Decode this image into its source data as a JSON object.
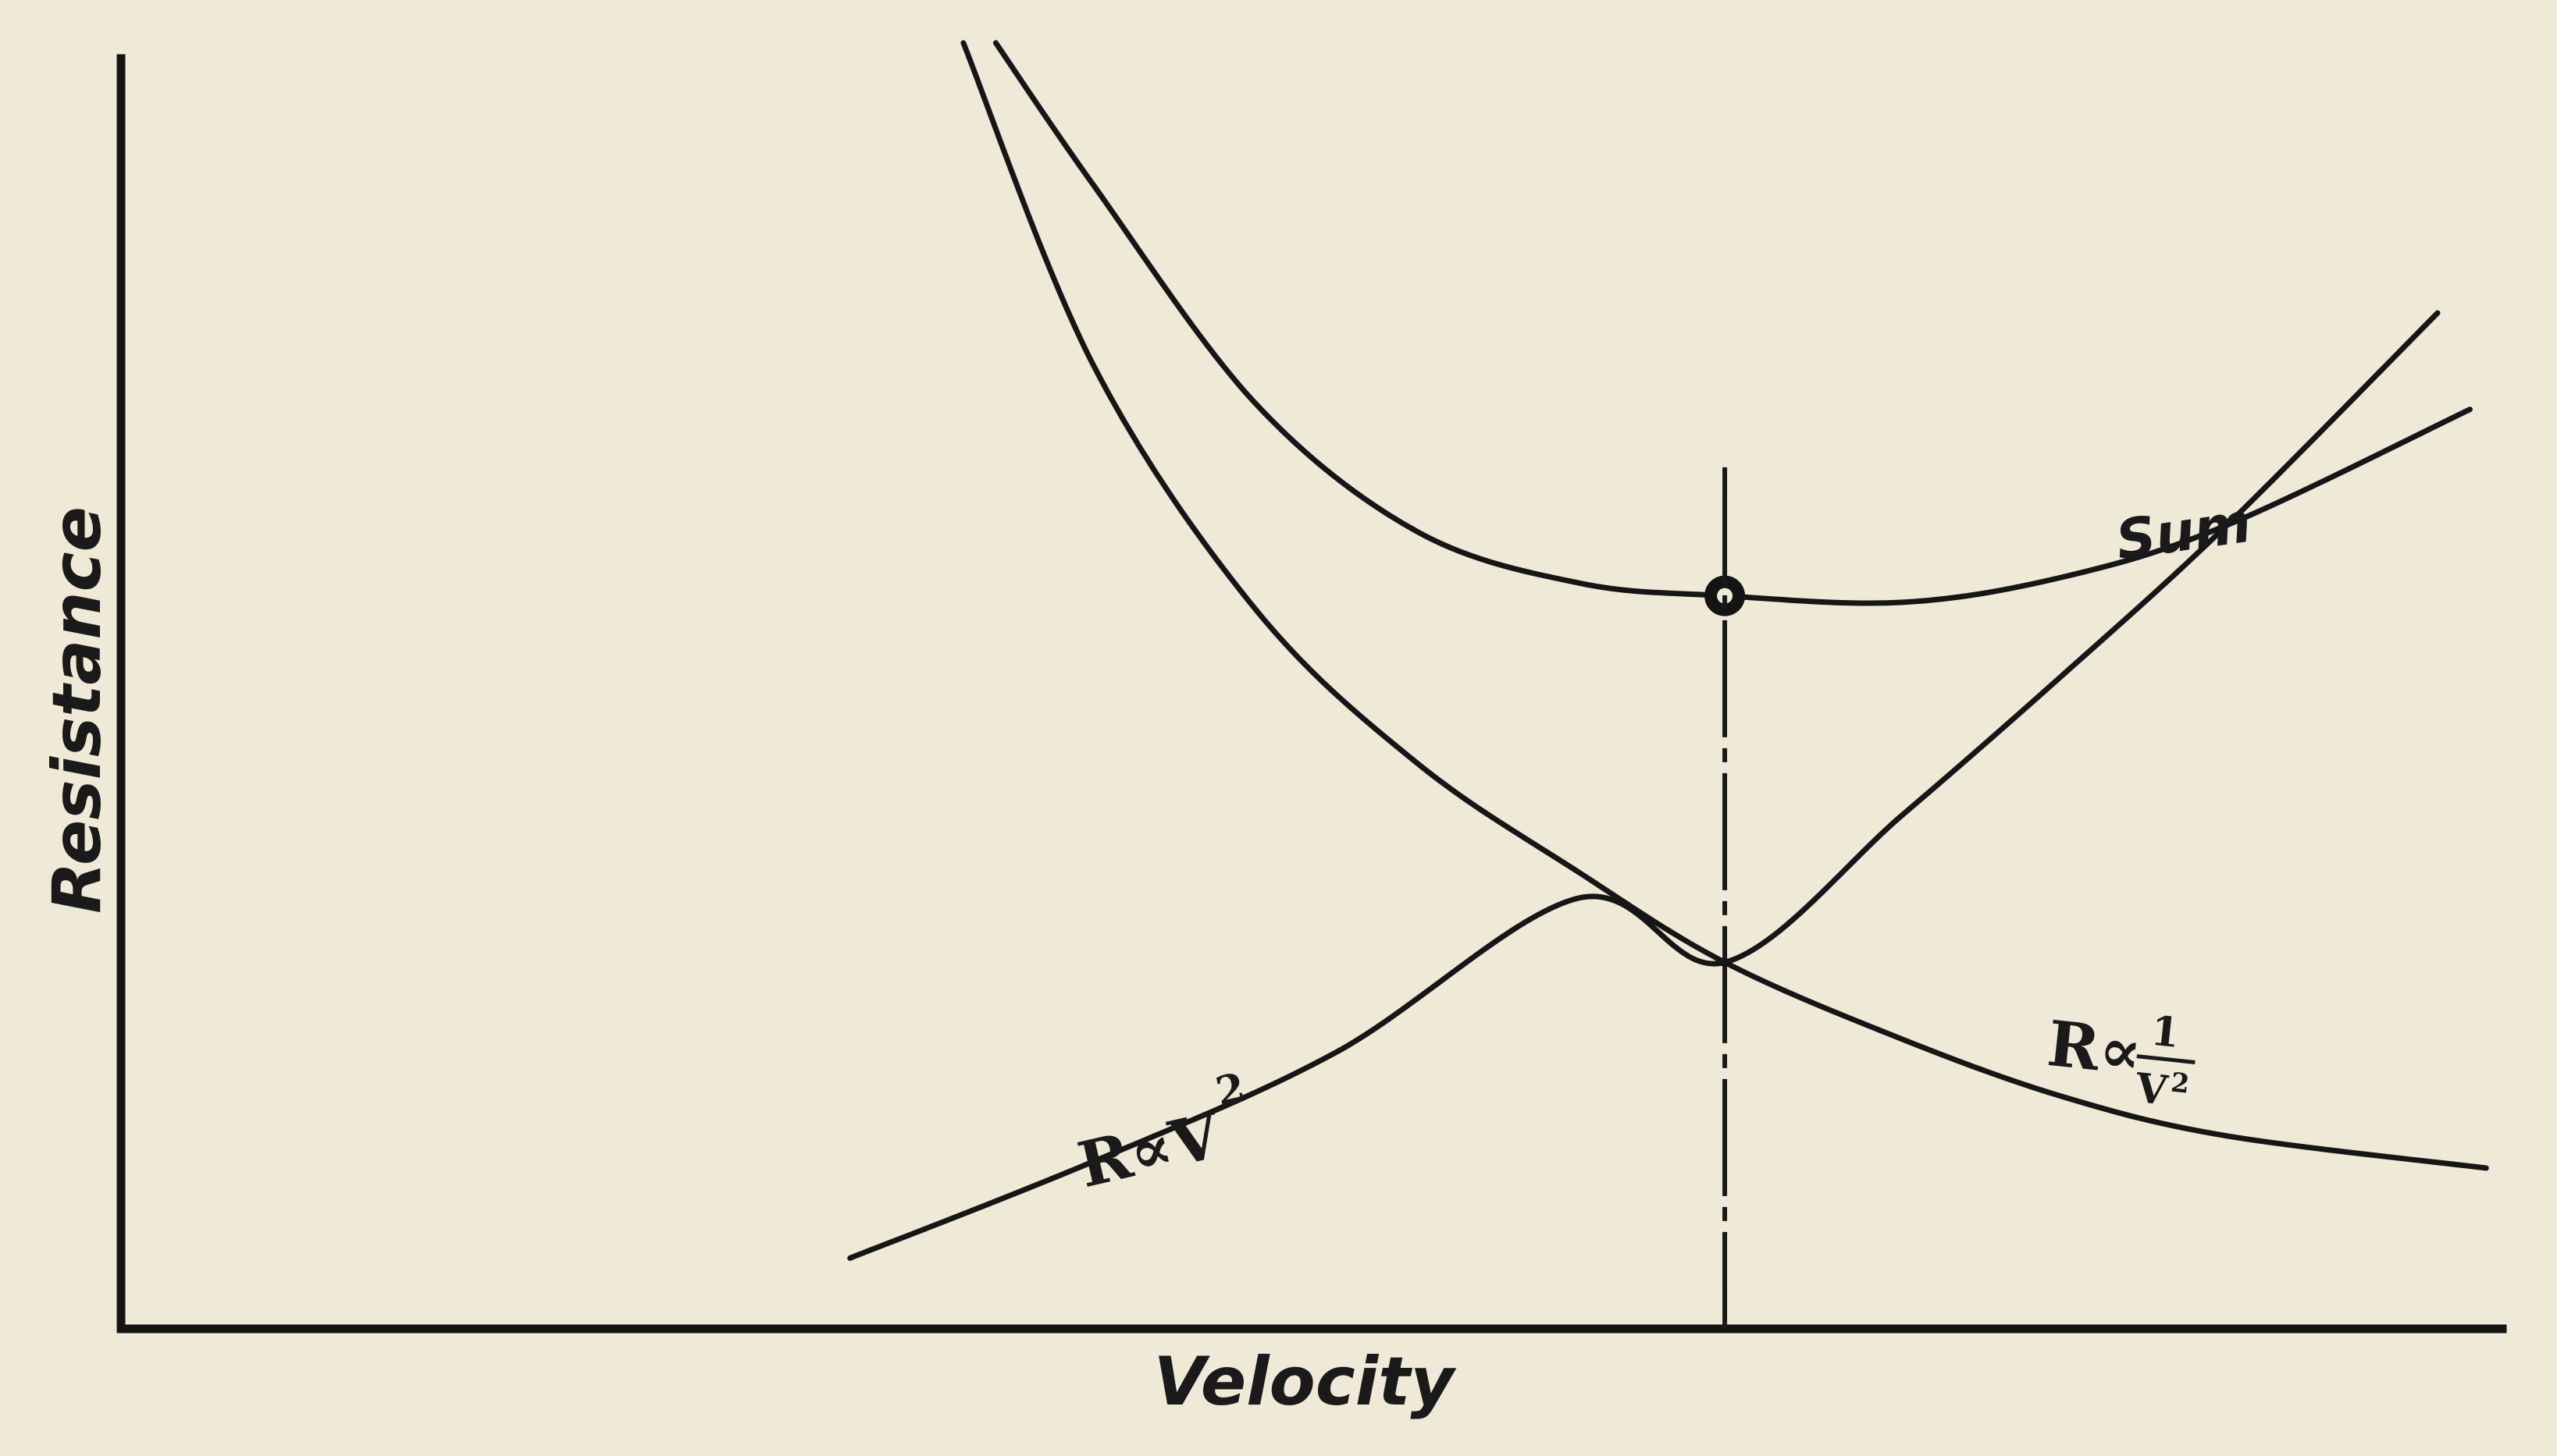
{
  "chart_data": {
    "type": "line",
    "xlabel": "Velocity",
    "ylabel": "Resistance",
    "xlim": [
      0,
      1.47
    ],
    "ylim": [
      0,
      1
    ],
    "axis_ticks": false,
    "grid": false,
    "legend": "none",
    "series": [
      {
        "name": "R ∝ V²",
        "label_main": "R∝V",
        "label_sup": "2",
        "points": [
          [
            0.45,
            0.055
          ],
          [
            0.6,
            0.13
          ],
          [
            0.75,
            0.215
          ],
          [
            0.9,
            0.335
          ],
          [
            0.99,
            0.285
          ],
          [
            1.1,
            0.4
          ],
          [
            1.2,
            0.51
          ],
          [
            1.3,
            0.625
          ],
          [
            1.43,
            0.79
          ]
        ]
      },
      {
        "name": "R ∝ 1/V²",
        "label_main": "R∝",
        "label_num": "1",
        "label_den": "V",
        "label_den_sup": "2",
        "points": [
          [
            0.52,
            1.0
          ],
          [
            0.6,
            0.75
          ],
          [
            0.7,
            0.56
          ],
          [
            0.8,
            0.44
          ],
          [
            0.9,
            0.355
          ],
          [
            0.99,
            0.285
          ],
          [
            1.1,
            0.225
          ],
          [
            1.2,
            0.18
          ],
          [
            1.3,
            0.15
          ],
          [
            1.46,
            0.125
          ]
        ]
      },
      {
        "name": "Sum",
        "label": "Sum",
        "points": [
          [
            0.54,
            1.0
          ],
          [
            0.6,
            0.89
          ],
          [
            0.7,
            0.72
          ],
          [
            0.8,
            0.62
          ],
          [
            0.9,
            0.58
          ],
          [
            0.99,
            0.57
          ],
          [
            1.1,
            0.565
          ],
          [
            1.2,
            0.585
          ],
          [
            1.3,
            0.625
          ],
          [
            1.45,
            0.715
          ]
        ]
      }
    ],
    "annotations": [
      {
        "type": "marker",
        "name": "minimum-of-sum",
        "x": 0.99,
        "y": 0.57
      },
      {
        "type": "vertical-line",
        "name": "optimum-velocity",
        "x": 0.99,
        "y_from": 0,
        "y_to": 0.67
      },
      {
        "type": "intersection",
        "name": "curves-intersection",
        "x": 0.99,
        "y": 0.285
      }
    ],
    "colors": {
      "paper": "#efe9d8",
      "ink": "#161616"
    }
  }
}
